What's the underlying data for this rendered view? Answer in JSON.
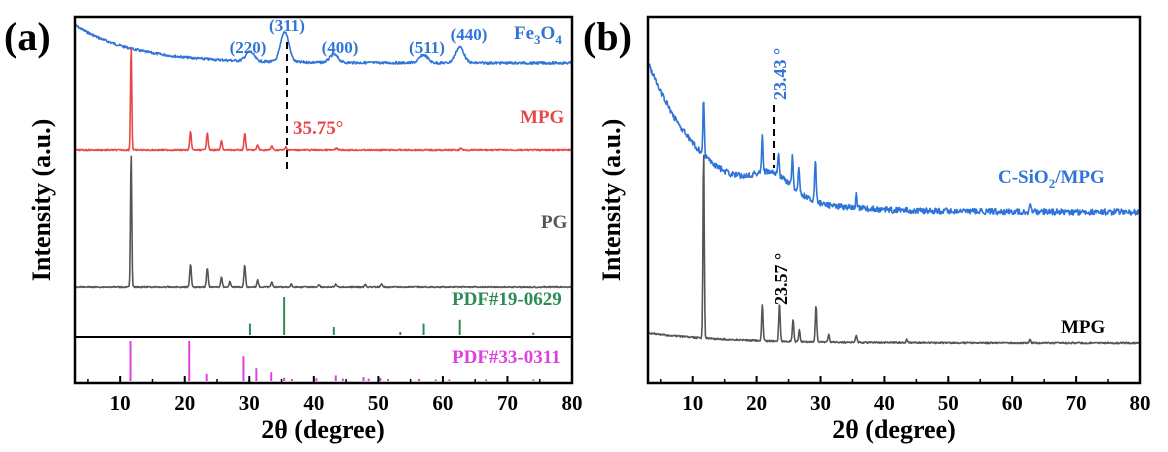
{
  "colors": {
    "fe3o4": "#2f74d8",
    "mpg_a": "#e8474a",
    "pg": "#555555",
    "pdf19": "#2e8b57",
    "pdf33": "#e040e0",
    "csio2": "#2f74d8",
    "mpg_b": "#555555",
    "axis": "#000000"
  },
  "chart_data": [
    {
      "panel_label": "(a)",
      "type": "line",
      "xlabel": "2θ (degree)",
      "ylabel": "Intensity (a.u.)",
      "xlim": [
        3,
        80
      ],
      "xticks": [
        10,
        20,
        30,
        40,
        50,
        60,
        70,
        80
      ],
      "grid": false,
      "series": [
        {
          "name": "Fe3O4",
          "label_text": "Fe",
          "label_sub1": "3",
          "label_mid": "O",
          "label_sub2": "4",
          "color": "#2f74d8",
          "peaks": [
            [
              30.1,
              0.12
            ],
            [
              35.5,
              0.38
            ],
            [
              43.1,
              0.1
            ],
            [
              57.0,
              0.1
            ],
            [
              62.6,
              0.2
            ]
          ],
          "peak_labels": [
            {
              "x": 30.1,
              "text": "(220)"
            },
            {
              "x": 35.5,
              "text": "(311)"
            },
            {
              "x": 43.1,
              "text": "(400)"
            },
            {
              "x": 57.0,
              "text": "(511)"
            },
            {
              "x": 62.6,
              "text": "(440)"
            }
          ]
        },
        {
          "name": "MPG",
          "color": "#e8474a",
          "peaks": [
            [
              11.7,
              1.0
            ],
            [
              20.9,
              0.17
            ],
            [
              23.5,
              0.17
            ],
            [
              25.7,
              0.09
            ],
            [
              29.3,
              0.16
            ],
            [
              31.3,
              0.05
            ],
            [
              33.5,
              0.04
            ],
            [
              35.7,
              0.03
            ],
            [
              43.5,
              0.02
            ],
            [
              62.8,
              0.02
            ]
          ],
          "annotation": "35.75°"
        },
        {
          "name": "PG",
          "color": "#555555",
          "peaks": [
            [
              11.7,
              1.0
            ],
            [
              20.9,
              0.17
            ],
            [
              23.5,
              0.14
            ],
            [
              25.7,
              0.07
            ],
            [
              27.0,
              0.04
            ],
            [
              29.3,
              0.16
            ],
            [
              31.3,
              0.05
            ],
            [
              33.5,
              0.04
            ],
            [
              36.5,
              0.02
            ],
            [
              40.8,
              0.02
            ],
            [
              43.4,
              0.02
            ],
            [
              48.0,
              0.02
            ],
            [
              50.5,
              0.02
            ]
          ]
        },
        {
          "name": "PDF#19-0629",
          "type": "sticks",
          "color": "#2e8b57",
          "sticks": [
            [
              30.1,
              0.3
            ],
            [
              35.4,
              1.0
            ],
            [
              43.1,
              0.21
            ],
            [
              53.4,
              0.08
            ],
            [
              57.0,
              0.3
            ],
            [
              62.6,
              0.4
            ],
            [
              74.0,
              0.06
            ]
          ]
        },
        {
          "name": "PDF#33-0311",
          "type": "sticks",
          "color": "#e040e0",
          "sticks": [
            [
              11.6,
              1.0
            ],
            [
              20.7,
              1.0
            ],
            [
              23.4,
              0.18
            ],
            [
              29.1,
              0.62
            ],
            [
              31.1,
              0.32
            ],
            [
              33.4,
              0.22
            ],
            [
              35.4,
              0.08
            ],
            [
              36.6,
              0.05
            ],
            [
              40.4,
              0.07
            ],
            [
              43.4,
              0.14
            ],
            [
              44.5,
              0.06
            ],
            [
              47.7,
              0.1
            ],
            [
              48.5,
              0.06
            ],
            [
              50.3,
              0.08
            ],
            [
              51.5,
              0.05
            ],
            [
              56.3,
              0.05
            ],
            [
              58.9,
              0.04
            ],
            [
              61.0,
              0.04
            ],
            [
              66.7,
              0.04
            ],
            [
              74.0,
              0.04
            ]
          ]
        }
      ]
    },
    {
      "panel_label": "(b)",
      "type": "line",
      "xlabel": "2θ (degree)",
      "ylabel": "Intensity (a.u.)",
      "xlim": [
        3,
        80
      ],
      "xticks": [
        10,
        20,
        30,
        40,
        50,
        60,
        70,
        80
      ],
      "grid": false,
      "series": [
        {
          "name": "C-SiO2/MPG",
          "label_pre": "C-SiO",
          "label_sub": "2",
          "label_post": "/MPG",
          "color": "#2f74d8",
          "peaks": [
            [
              11.7,
              0.55
            ],
            [
              20.9,
              0.35
            ],
            [
              23.4,
              0.2
            ],
            [
              25.6,
              0.3
            ],
            [
              26.6,
              0.22
            ],
            [
              29.2,
              0.4
            ],
            [
              35.6,
              0.12
            ],
            [
              62.8,
              0.06
            ]
          ],
          "annotation": "23.43 °"
        },
        {
          "name": "MPG",
          "color": "#555555",
          "peaks": [
            [
              11.7,
              1.0
            ],
            [
              20.9,
              0.19
            ],
            [
              23.57,
              0.2
            ],
            [
              25.7,
              0.12
            ],
            [
              26.7,
              0.06
            ],
            [
              29.3,
              0.19
            ],
            [
              31.3,
              0.04
            ],
            [
              35.6,
              0.04
            ],
            [
              43.5,
              0.02
            ],
            [
              62.8,
              0.02
            ]
          ],
          "annotation": "23.57 °"
        }
      ]
    }
  ]
}
